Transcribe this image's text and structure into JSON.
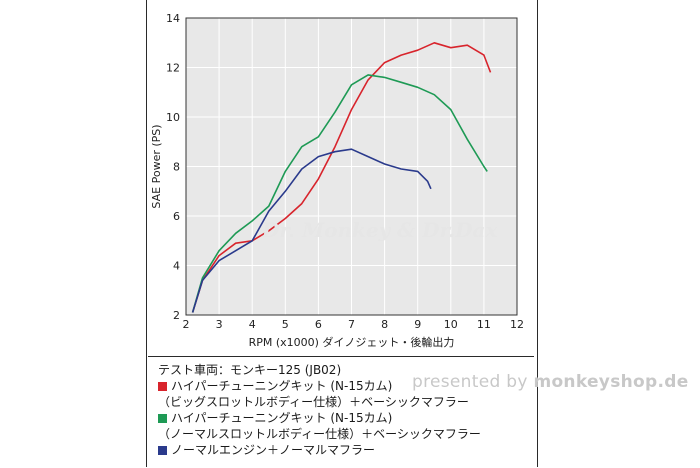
{
  "chart_data": {
    "type": "line",
    "xlabel": "RPM (x1000) ダイノジェット・後輪出力",
    "ylabel": "SAE Power (PS)",
    "xlim": [
      2,
      12
    ],
    "ylim": [
      2,
      14
    ],
    "x_ticks": [
      2,
      3,
      4,
      5,
      6,
      7,
      8,
      9,
      10,
      11,
      12
    ],
    "y_ticks": [
      2,
      4,
      6,
      8,
      10,
      12,
      14
    ],
    "grid": true,
    "series": [
      {
        "color": "#d8242c",
        "x": [
          2.2,
          2.5,
          3.0,
          3.5,
          4.0,
          4.5,
          5.0,
          5.5,
          6.0,
          6.5,
          7.0,
          7.5,
          8.0,
          8.5,
          9.0,
          9.5,
          10.0,
          10.5,
          11.0,
          11.2
        ],
        "y": [
          2.1,
          3.4,
          4.4,
          4.9,
          5.0,
          5.4,
          5.9,
          6.5,
          7.5,
          8.8,
          10.3,
          11.5,
          12.2,
          12.5,
          12.7,
          13.0,
          12.8,
          12.9,
          12.5,
          11.8
        ]
      },
      {
        "color": "#1e9a55",
        "x": [
          2.2,
          2.5,
          3.0,
          3.5,
          4.0,
          4.5,
          5.0,
          5.5,
          6.0,
          6.5,
          7.0,
          7.5,
          8.0,
          8.5,
          9.0,
          9.5,
          10.0,
          10.5,
          11.0,
          11.1
        ],
        "y": [
          2.1,
          3.5,
          4.6,
          5.3,
          5.8,
          6.4,
          7.8,
          8.8,
          9.2,
          10.2,
          11.3,
          11.7,
          11.6,
          11.4,
          11.2,
          10.9,
          10.3,
          9.1,
          8.0,
          7.8
        ]
      },
      {
        "color": "#2a3a8c",
        "x": [
          2.2,
          2.5,
          3.0,
          3.5,
          4.0,
          4.5,
          5.0,
          5.5,
          6.0,
          6.5,
          7.0,
          7.5,
          8.0,
          8.5,
          9.0,
          9.3,
          9.4
        ],
        "y": [
          2.1,
          3.4,
          4.2,
          4.6,
          5.0,
          6.2,
          7.0,
          7.9,
          8.4,
          8.6,
          8.7,
          8.4,
          8.1,
          7.9,
          7.8,
          7.4,
          7.1
        ]
      }
    ]
  },
  "legend": {
    "vehicle": "テスト車両：モンキー125 (JB02)",
    "item1_line1": "ハイパーチューニングキット (N-15カム)",
    "item1_line2": "（ビッグスロットルボディー仕様）＋ベーシックマフラー",
    "item2_line1": "ハイパーチューニングキット (N-15カム)",
    "item2_line2": "（ノーマルスロットルボディー仕様）＋ベーシックマフラー",
    "item3_line1": "ノーマルエンジン＋ノーマルマフラー"
  },
  "watermark": {
    "prefix": "presented by ",
    "brand": "monkeyshop.de"
  },
  "logo_watermark": "Dr. Monkey & Dr.Dax",
  "colors": {
    "red": "#d8242c",
    "green": "#1e9a55",
    "blue": "#2a3a8c",
    "plot_bg": "#e8e8e8"
  }
}
